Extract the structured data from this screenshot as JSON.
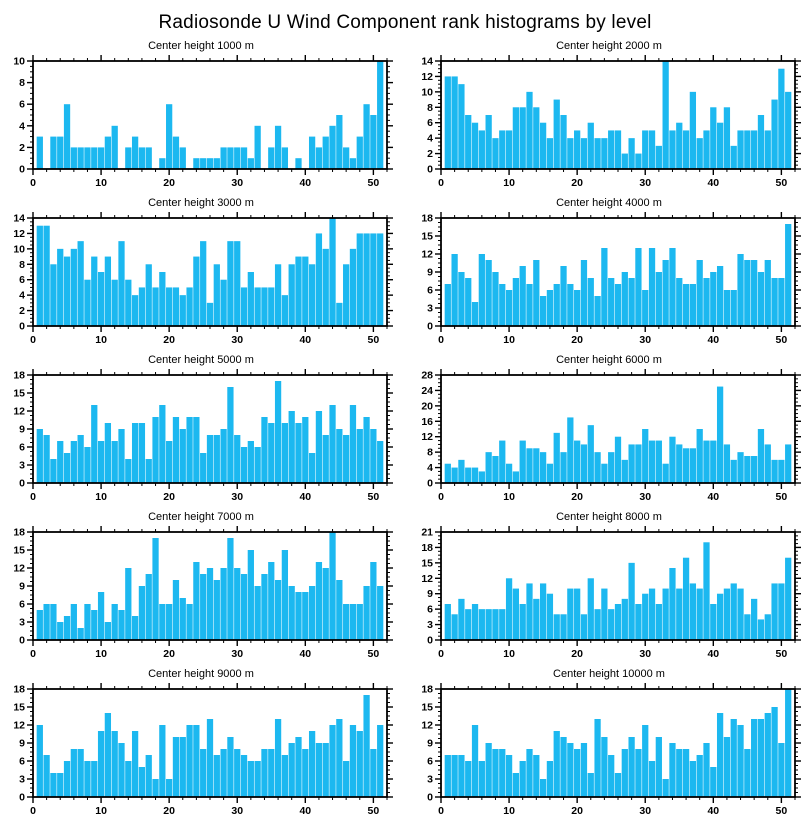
{
  "page_title": "Radiosonde U Wind Component rank histograms by level",
  "accent_color": "#1cb8f0",
  "axis_color": "#000000",
  "chart_data": [
    {
      "type": "bar",
      "title": "Center height 1000 m",
      "xlim": [
        0,
        52
      ],
      "ylim": [
        0,
        10
      ],
      "y_step": 2,
      "x_major": 10,
      "x_minor": 2,
      "grid": false,
      "values": [
        3,
        0,
        3,
        3,
        6,
        2,
        2,
        2,
        2,
        2,
        3,
        4,
        0,
        2,
        3,
        2,
        2,
        0,
        1,
        6,
        3,
        2,
        0,
        1,
        1,
        1,
        1,
        2,
        2,
        2,
        2,
        1,
        4,
        0,
        2,
        4,
        2,
        0,
        1,
        0,
        3,
        2,
        3,
        4,
        5,
        2,
        1,
        3,
        6,
        5,
        10
      ]
    },
    {
      "type": "bar",
      "title": "Center height 2000 m",
      "xlim": [
        0,
        52
      ],
      "ylim": [
        0,
        14
      ],
      "y_step": 2,
      "x_major": 10,
      "x_minor": 2,
      "grid": false,
      "values": [
        12,
        12,
        11,
        7,
        6,
        5,
        7,
        4,
        5,
        5,
        8,
        8,
        10,
        8,
        6,
        4,
        9,
        7,
        4,
        5,
        4,
        6,
        4,
        4,
        5,
        5,
        2,
        4,
        2,
        5,
        5,
        3,
        14,
        5,
        6,
        5,
        10,
        4,
        5,
        8,
        6,
        8,
        3,
        5,
        5,
        5,
        7,
        5,
        9,
        13,
        10
      ]
    },
    {
      "type": "bar",
      "title": "Center height 3000 m",
      "xlim": [
        0,
        52
      ],
      "ylim": [
        0,
        14
      ],
      "y_step": 2,
      "x_major": 10,
      "x_minor": 2,
      "grid": false,
      "values": [
        13,
        13,
        8,
        10,
        9,
        10,
        11,
        6,
        9,
        7,
        9,
        6,
        11,
        6,
        4,
        5,
        8,
        5,
        7,
        5,
        5,
        4,
        5,
        9,
        11,
        3,
        8,
        6,
        11,
        11,
        5,
        7,
        5,
        5,
        5,
        8,
        4,
        8,
        9,
        9,
        8,
        12,
        10,
        14,
        3,
        8,
        10,
        12,
        12,
        12,
        12
      ]
    },
    {
      "type": "bar",
      "title": "Center height 4000 m",
      "xlim": [
        0,
        52
      ],
      "ylim": [
        0,
        18
      ],
      "y_step": 3,
      "x_major": 10,
      "x_minor": 2,
      "grid": false,
      "values": [
        7,
        12,
        9,
        8,
        4,
        12,
        11,
        9,
        7,
        6,
        8,
        10,
        7,
        11,
        5,
        6,
        7,
        10,
        7,
        6,
        11,
        8,
        5,
        13,
        8,
        7,
        9,
        8,
        13,
        6,
        13,
        9,
        11,
        13,
        8,
        7,
        7,
        11,
        8,
        9,
        10,
        6,
        6,
        12,
        11,
        11,
        9,
        11,
        8,
        8,
        17
      ]
    },
    {
      "type": "bar",
      "title": "Center height 5000 m",
      "xlim": [
        0,
        52
      ],
      "ylim": [
        0,
        18
      ],
      "y_step": 3,
      "x_major": 10,
      "x_minor": 2,
      "grid": false,
      "values": [
        9,
        8,
        4,
        7,
        5,
        7,
        8,
        6,
        13,
        7,
        10,
        7,
        9,
        4,
        10,
        10,
        4,
        11,
        13,
        7,
        11,
        9,
        11,
        11,
        5,
        8,
        8,
        9,
        16,
        8,
        6,
        7,
        6,
        11,
        10,
        17,
        10,
        12,
        10,
        11,
        5,
        12,
        8,
        13,
        9,
        8,
        13,
        9,
        11,
        9,
        7
      ]
    },
    {
      "type": "bar",
      "title": "Center height 6000 m",
      "xlim": [
        0,
        52
      ],
      "ylim": [
        0,
        28
      ],
      "y_step": 4,
      "x_major": 10,
      "x_minor": 2,
      "grid": false,
      "values": [
        5,
        4,
        6,
        4,
        4,
        3,
        8,
        7,
        11,
        5,
        3,
        11,
        9,
        9,
        8,
        5,
        13,
        8,
        17,
        11,
        10,
        15,
        8,
        5,
        8,
        12,
        6,
        10,
        10,
        14,
        11,
        11,
        5,
        12,
        10,
        9,
        9,
        14,
        11,
        11,
        25,
        10,
        6,
        8,
        7,
        7,
        14,
        10,
        6,
        6,
        10
      ]
    },
    {
      "type": "bar",
      "title": "Center height 7000 m",
      "xlim": [
        0,
        52
      ],
      "ylim": [
        0,
        18
      ],
      "y_step": 3,
      "x_major": 10,
      "x_minor": 2,
      "grid": false,
      "values": [
        5,
        6,
        6,
        3,
        4,
        6,
        2,
        6,
        5,
        8,
        3,
        6,
        5,
        12,
        4,
        9,
        11,
        17,
        6,
        6,
        10,
        7,
        6,
        13,
        11,
        12,
        10,
        12,
        17,
        12,
        11,
        15,
        9,
        11,
        13,
        10,
        15,
        9,
        8,
        8,
        9,
        13,
        12,
        18,
        10,
        6,
        6,
        6,
        9,
        13,
        9
      ]
    },
    {
      "type": "bar",
      "title": "Center height 8000 m",
      "xlim": [
        0,
        52
      ],
      "ylim": [
        0,
        21
      ],
      "y_step": 3,
      "x_major": 10,
      "x_minor": 2,
      "grid": false,
      "values": [
        7,
        5,
        8,
        6,
        7,
        6,
        6,
        6,
        6,
        12,
        10,
        7,
        11,
        8,
        11,
        9,
        5,
        5,
        10,
        10,
        5,
        12,
        6,
        10,
        6,
        7,
        8,
        15,
        7,
        9,
        10,
        7,
        10,
        14,
        10,
        16,
        11,
        10,
        19,
        7,
        9,
        10,
        11,
        10,
        5,
        8,
        4,
        5,
        11,
        11,
        16
      ]
    },
    {
      "type": "bar",
      "title": "Center height 9000 m",
      "xlim": [
        0,
        52
      ],
      "ylim": [
        0,
        18
      ],
      "y_step": 3,
      "x_major": 10,
      "x_minor": 2,
      "grid": false,
      "values": [
        12,
        7,
        4,
        4,
        6,
        8,
        8,
        6,
        6,
        11,
        14,
        11,
        9,
        6,
        11,
        5,
        7,
        3,
        12,
        3,
        10,
        10,
        12,
        12,
        8,
        13,
        7,
        8,
        10,
        8,
        7,
        6,
        6,
        8,
        8,
        13,
        7,
        9,
        10,
        8,
        11,
        9,
        9,
        12,
        13,
        6,
        12,
        11,
        17,
        8,
        12
      ]
    },
    {
      "type": "bar",
      "title": "Center height 10000 m",
      "xlim": [
        0,
        52
      ],
      "ylim": [
        0,
        18
      ],
      "y_step": 3,
      "x_major": 10,
      "x_minor": 2,
      "grid": false,
      "values": [
        7,
        7,
        7,
        6,
        12,
        6,
        9,
        8,
        8,
        7,
        4,
        6,
        8,
        7,
        3,
        6,
        11,
        10,
        9,
        8,
        9,
        4,
        13,
        10,
        7,
        4,
        8,
        10,
        8,
        12,
        6,
        10,
        3,
        9,
        8,
        8,
        6,
        7,
        9,
        5,
        14,
        10,
        13,
        12,
        8,
        13,
        13,
        14,
        15,
        9,
        18
      ]
    }
  ]
}
